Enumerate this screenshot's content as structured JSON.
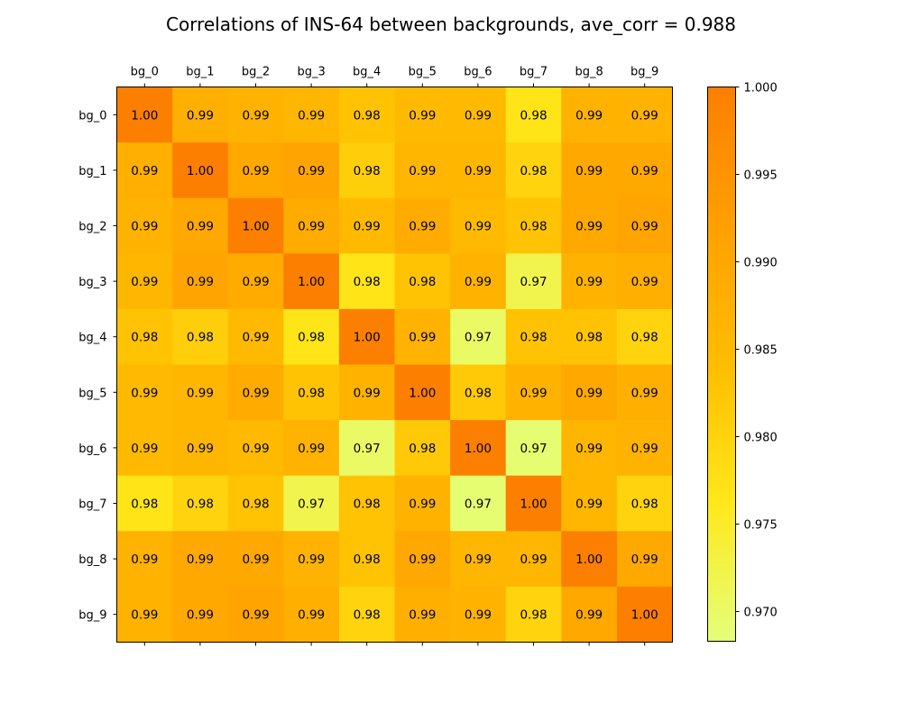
{
  "chart_data": {
    "type": "heatmap",
    "title": "Correlations of INS-64 between backgrounds, ave_corr = 0.988",
    "x_labels": [
      "bg_0",
      "bg_1",
      "bg_2",
      "bg_3",
      "bg_4",
      "bg_5",
      "bg_6",
      "bg_7",
      "bg_8",
      "bg_9"
    ],
    "y_labels": [
      "bg_0",
      "bg_1",
      "bg_2",
      "bg_3",
      "bg_4",
      "bg_5",
      "bg_6",
      "bg_7",
      "bg_8",
      "bg_9"
    ],
    "values": [
      [
        1.0,
        0.988,
        0.987,
        0.986,
        0.983,
        0.985,
        0.985,
        0.977,
        0.987,
        0.987
      ],
      [
        0.988,
        1.0,
        0.99,
        0.991,
        0.981,
        0.986,
        0.986,
        0.98,
        0.99,
        0.99
      ],
      [
        0.987,
        0.99,
        1.0,
        0.989,
        0.985,
        0.989,
        0.985,
        0.983,
        0.99,
        0.991
      ],
      [
        0.986,
        0.991,
        0.989,
        1.0,
        0.977,
        0.983,
        0.987,
        0.972,
        0.987,
        0.988
      ],
      [
        0.983,
        0.981,
        0.985,
        0.977,
        1.0,
        0.987,
        0.97,
        0.983,
        0.983,
        0.98
      ],
      [
        0.985,
        0.986,
        0.989,
        0.983,
        0.987,
        1.0,
        0.982,
        0.987,
        0.99,
        0.988
      ],
      [
        0.985,
        0.986,
        0.985,
        0.987,
        0.97,
        0.982,
        1.0,
        0.969,
        0.986,
        0.987
      ],
      [
        0.977,
        0.98,
        0.983,
        0.972,
        0.983,
        0.987,
        0.969,
        1.0,
        0.986,
        0.98
      ],
      [
        0.987,
        0.99,
        0.99,
        0.987,
        0.983,
        0.99,
        0.986,
        0.986,
        1.0,
        0.99
      ],
      [
        0.987,
        0.99,
        0.991,
        0.988,
        0.98,
        0.988,
        0.987,
        0.98,
        0.99,
        1.0
      ]
    ],
    "cell_labels": [
      [
        "1.00",
        "0.99",
        "0.99",
        "0.99",
        "0.98",
        "0.99",
        "0.99",
        "0.98",
        "0.99",
        "0.99"
      ],
      [
        "0.99",
        "1.00",
        "0.99",
        "0.99",
        "0.98",
        "0.99",
        "0.99",
        "0.98",
        "0.99",
        "0.99"
      ],
      [
        "0.99",
        "0.99",
        "1.00",
        "0.99",
        "0.99",
        "0.99",
        "0.99",
        "0.98",
        "0.99",
        "0.99"
      ],
      [
        "0.99",
        "0.99",
        "0.99",
        "1.00",
        "0.98",
        "0.98",
        "0.99",
        "0.97",
        "0.99",
        "0.99"
      ],
      [
        "0.98",
        "0.98",
        "0.99",
        "0.98",
        "1.00",
        "0.99",
        "0.97",
        "0.98",
        "0.98",
        "0.98"
      ],
      [
        "0.99",
        "0.99",
        "0.99",
        "0.98",
        "0.99",
        "1.00",
        "0.98",
        "0.99",
        "0.99",
        "0.99"
      ],
      [
        "0.99",
        "0.99",
        "0.99",
        "0.99",
        "0.97",
        "0.98",
        "1.00",
        "0.97",
        "0.99",
        "0.99"
      ],
      [
        "0.98",
        "0.98",
        "0.98",
        "0.97",
        "0.98",
        "0.99",
        "0.97",
        "1.00",
        "0.99",
        "0.98"
      ],
      [
        "0.99",
        "0.99",
        "0.99",
        "0.99",
        "0.98",
        "0.99",
        "0.99",
        "0.99",
        "1.00",
        "0.99"
      ],
      [
        "0.99",
        "0.99",
        "0.99",
        "0.99",
        "0.98",
        "0.99",
        "0.99",
        "0.98",
        "0.99",
        "1.00"
      ]
    ],
    "colormap": "Wistia",
    "color_range": [
      0.9683,
      1.0
    ],
    "colormap_colors": [
      "#e4ff7a",
      "#ffe81a",
      "#ffbd00",
      "#ffa000",
      "#fc7f00"
    ],
    "colorbar_ticks": [
      "0.970",
      "0.975",
      "0.980",
      "0.985",
      "0.990",
      "0.995",
      "1.000"
    ],
    "colorbar_tick_values": [
      0.97,
      0.975,
      0.98,
      0.985,
      0.99,
      0.995,
      1.0
    ],
    "x_axis_position": "top",
    "grid": false
  }
}
